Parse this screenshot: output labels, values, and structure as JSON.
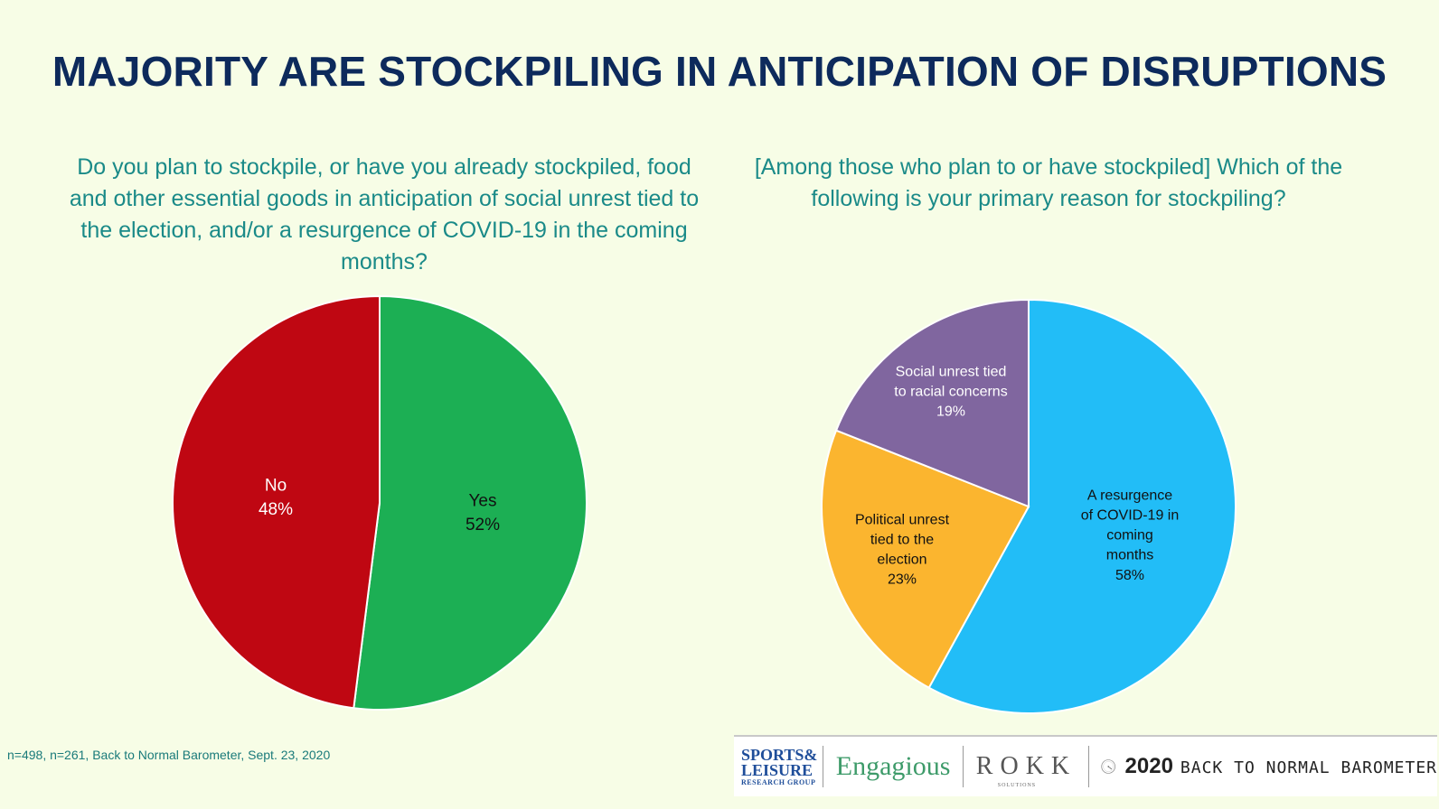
{
  "title": "MAJORITY ARE STOCKPILING IN ANTICIPATION OF DISRUPTIONS",
  "questions": {
    "left": "Do you plan to stockpile, or have you already stockpiled, food and other essential goods in anticipation of social unrest tied to the election, and/or a resurgence of COVID-19 in the coming months?",
    "right": "[Among those who plan to or have stockpiled] Which of the following is your primary reason for stockpiling?"
  },
  "footnote": "n=498, n=261, Back to Normal Barometer, Sept. 23, 2020",
  "logos": {
    "sl_line1": "SPORTS&",
    "sl_line2": "LEISURE",
    "sl_line3": "RESEARCH GROUP",
    "engagious": "Engagious",
    "rokk": "ROKK",
    "rokk_sub": "SOLUTIONS",
    "barometer_year": "2020",
    "barometer_text": "BACK TO NORMAL BAROMETER"
  },
  "chart_data": [
    {
      "type": "pie",
      "title": "Do you plan to stockpile, or have you already stockpiled, food and other essential goods in anticipation of social unrest tied to the election, and/or a resurgence of COVID-19 in the coming months?",
      "slices": [
        {
          "label": "Yes",
          "value": 52,
          "display": "52%",
          "color": "#1caf54",
          "text_color": "#111111"
        },
        {
          "label": "No",
          "value": 48,
          "display": "48%",
          "color": "#bf0712",
          "text_color": "#ffffff"
        }
      ]
    },
    {
      "type": "pie",
      "title": "[Among those who plan to or have stockpiled] Which of the following is your primary reason for stockpiling?",
      "slices": [
        {
          "label": "A resurgence of COVID-19 in coming months",
          "label_lines": [
            "A resurgence",
            "of COVID-19 in",
            "coming",
            "months"
          ],
          "value": 58,
          "display": "58%",
          "color": "#22bdf7",
          "text_color": "#111111"
        },
        {
          "label": "Political unrest tied to the election",
          "label_lines": [
            "Political unrest",
            "tied to the",
            "election"
          ],
          "value": 23,
          "display": "23%",
          "color": "#fbb52f",
          "text_color": "#111111"
        },
        {
          "label": "Social unrest tied to racial concerns",
          "label_lines": [
            "Social unrest tied",
            "to racial concerns"
          ],
          "value": 19,
          "display": "19%",
          "color": "#80669f",
          "text_color": "#ffffff"
        }
      ]
    }
  ]
}
